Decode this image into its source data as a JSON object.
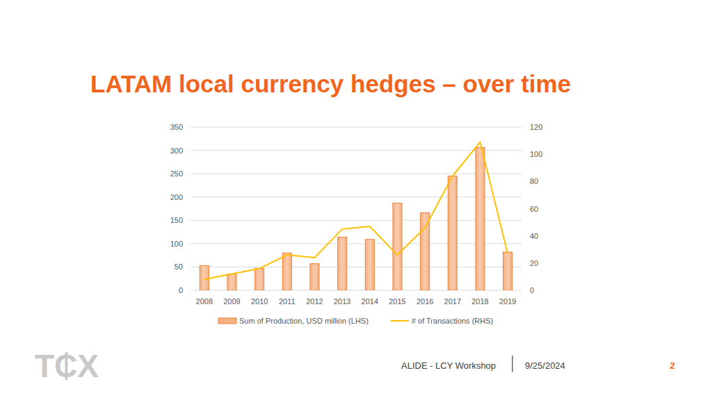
{
  "chart_data": {
    "type": "bar",
    "title": "LATAM local currency hedges – over time",
    "categories": [
      "2008",
      "2009",
      "2010",
      "2011",
      "2012",
      "2013",
      "2014",
      "2015",
      "2016",
      "2017",
      "2018",
      "2019"
    ],
    "series": [
      {
        "name": "Sum of Production, USD million (LHS)",
        "type": "bar",
        "color": "#f4b183",
        "values": [
          53,
          35,
          47,
          80,
          57,
          114,
          109,
          187,
          166,
          245,
          306,
          82
        ]
      },
      {
        "name": "# of Transactions (RHS)",
        "type": "line",
        "axis": "y2",
        "color": "#ffc000",
        "values": [
          8,
          12,
          16,
          26,
          24,
          45,
          47,
          26,
          46,
          84,
          109,
          27
        ]
      }
    ],
    "ylim": [
      0,
      350
    ],
    "yticks": [
      0,
      50,
      100,
      150,
      200,
      250,
      300,
      350
    ],
    "y2lim": [
      0,
      120
    ],
    "y2ticks": [
      0,
      20,
      40,
      60,
      80,
      100,
      120
    ],
    "grid": true,
    "legend": "bottom"
  },
  "footer": {
    "logo": "T₵X",
    "event": "ALIDE - LCY Workshop",
    "date": "9/25/2024",
    "page": "2"
  }
}
